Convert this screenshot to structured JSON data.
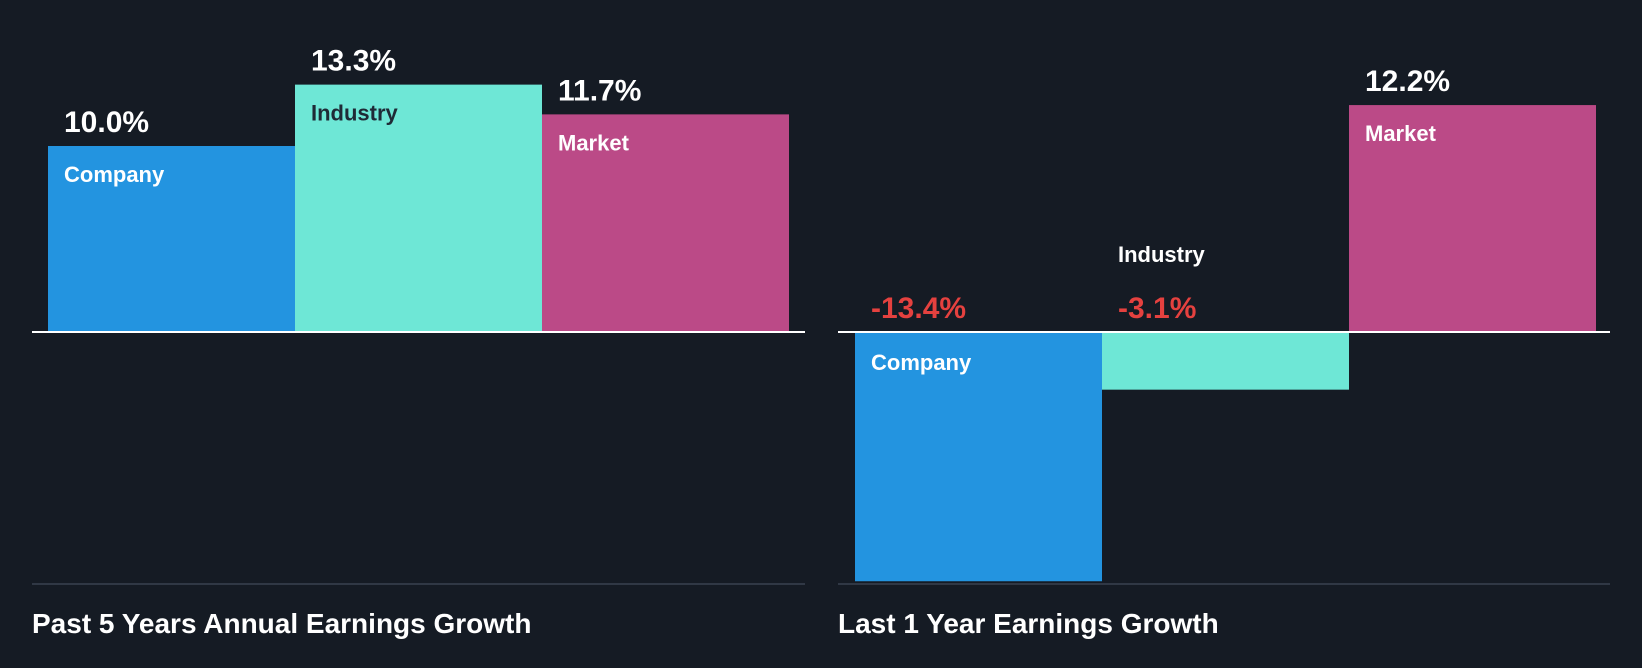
{
  "colors": {
    "background": "#151b24",
    "company": "#2394e0",
    "industry": "#6ee7d6",
    "market": "#bb4a87",
    "negative_value": "#e5413f",
    "text": "#ffffff",
    "text_on_light": "#1f2a36"
  },
  "chart_data": [
    {
      "type": "bar",
      "title": "Past 5 Years Annual Earnings Growth",
      "categories": [
        "Company",
        "Industry",
        "Market"
      ],
      "values": [
        10.0,
        13.3,
        11.7
      ],
      "value_labels": [
        "10.0%",
        "13.3%",
        "11.7%"
      ],
      "unit": "%",
      "grid": false,
      "legend": "none"
    },
    {
      "type": "bar",
      "title": "Last 1 Year Earnings Growth",
      "categories": [
        "Company",
        "Industry",
        "Market"
      ],
      "values": [
        -13.4,
        -3.1,
        12.2
      ],
      "value_labels": [
        "-13.4%",
        "-3.1%",
        "12.2%"
      ],
      "unit": "%",
      "grid": false,
      "legend": "none"
    }
  ]
}
